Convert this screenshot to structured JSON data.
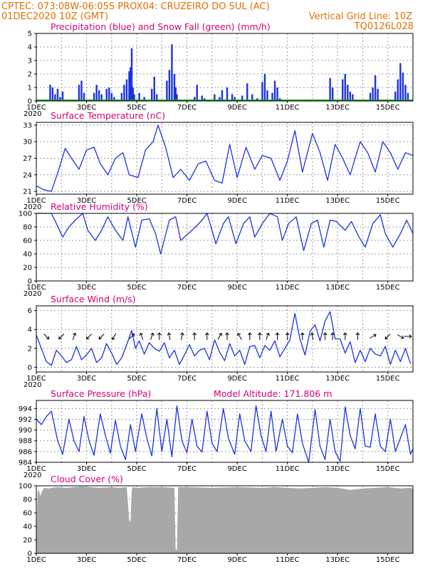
{
  "header": {
    "line1_left": "CPTEC:   073:08W-06:05S   PROX04: CRUZEIRO DO SUL (AC)",
    "line2_left": "01DEC2020 10Z (GMT)",
    "line2_right": "Vertical Grid Line: 10Z",
    "line3_right": "TQ0126L028"
  },
  "colors": {
    "header": "#e07000",
    "title": "#d4007a",
    "line": "#1c32e0",
    "bar": "#1c32e0",
    "snow": "#00a000",
    "cloud": "#a8a8a8",
    "grid": "#9a9a9a"
  },
  "x_axis": {
    "start_day": 1,
    "end_day": 16,
    "labels": [
      "1DEC",
      "3DEC",
      "5DEC",
      "7DEC",
      "9DEC",
      "11DEC",
      "13DEC",
      "15DEC"
    ],
    "label_days": [
      1,
      3,
      5,
      7,
      9,
      11,
      13,
      15
    ],
    "year_stub": "2020"
  },
  "chart_data": [
    {
      "id": "precip",
      "type": "bar",
      "title": "Precipitation (blue) and Snow Fall (green) (mm/h)",
      "ylim": [
        0,
        5
      ],
      "yticks": [
        0,
        1,
        2,
        3,
        4,
        5
      ],
      "x": [
        1.55,
        1.65,
        1.75,
        1.85,
        1.95,
        2.05,
        2.7,
        2.8,
        2.9,
        3.3,
        3.4,
        3.5,
        3.6,
        3.8,
        3.9,
        4.0,
        4.1,
        4.4,
        4.5,
        4.6,
        4.7,
        4.75,
        4.8,
        4.85,
        4.9,
        5.1,
        5.3,
        5.6,
        5.7,
        5.8,
        6.2,
        6.3,
        6.4,
        6.5,
        6.55,
        6.6,
        7.3,
        7.4,
        7.6,
        7.7,
        8.1,
        8.3,
        8.4,
        8.6,
        8.8,
        8.9,
        9.2,
        9.4,
        9.6,
        9.8,
        10.0,
        10.1,
        10.2,
        10.4,
        10.5,
        10.6,
        10.7,
        12.7,
        12.8,
        13.2,
        13.3,
        13.4,
        13.5,
        13.6,
        14.3,
        14.4,
        14.5,
        14.6,
        15.3,
        15.4,
        15.5,
        15.6,
        15.7,
        15.8
      ],
      "values": [
        1.2,
        1.0,
        0.5,
        0.9,
        0.3,
        0.7,
        1.2,
        1.5,
        0.6,
        0.6,
        1.2,
        0.8,
        0.5,
        0.9,
        1.0,
        0.6,
        0.3,
        0.6,
        1.2,
        1.6,
        2.2,
        2.5,
        3.9,
        1.0,
        0.5,
        0.6,
        0.3,
        0.9,
        1.8,
        0.5,
        1.5,
        2.3,
        4.2,
        2.0,
        1.0,
        0.5,
        0.3,
        1.2,
        0.4,
        0.2,
        0.5,
        0.3,
        0.8,
        1.0,
        0.5,
        0.3,
        0.4,
        1.3,
        0.5,
        0.2,
        1.4,
        2.0,
        0.8,
        0.6,
        1.5,
        1.0,
        0.2,
        1.7,
        1.0,
        1.6,
        2.0,
        1.2,
        0.7,
        0.5,
        0.6,
        1.0,
        1.9,
        0.9,
        0.7,
        1.6,
        2.8,
        2.1,
        1.2,
        0.6
      ]
    },
    {
      "id": "temperature",
      "type": "line",
      "title": "Surface Temperature (nC)",
      "ylim": [
        20.5,
        33.5
      ],
      "yticks": [
        21,
        24,
        27,
        30,
        33
      ],
      "x": [
        1.0,
        1.3,
        1.6,
        1.9,
        2.15,
        2.4,
        2.7,
        3.0,
        3.3,
        3.55,
        3.85,
        4.15,
        4.45,
        4.7,
        5.05,
        5.35,
        5.65,
        5.85,
        6.15,
        6.45,
        6.75,
        7.1,
        7.45,
        7.75,
        8.1,
        8.4,
        8.7,
        9.0,
        9.35,
        9.7,
        10.0,
        10.35,
        10.7,
        11.0,
        11.3,
        11.6,
        12.0,
        12.3,
        12.6,
        12.9,
        13.2,
        13.5,
        13.9,
        14.2,
        14.5,
        14.8,
        15.1,
        15.4,
        15.7,
        16.0
      ],
      "values": [
        22,
        21.3,
        21,
        25,
        28.8,
        27,
        25,
        28.5,
        29,
        26,
        24,
        27,
        28,
        24,
        23.5,
        28.5,
        30,
        33,
        29,
        23.5,
        25,
        23,
        26,
        26.5,
        23,
        22.5,
        29.5,
        23.5,
        29,
        25,
        27.5,
        27,
        23,
        26.5,
        32,
        24.5,
        31.5,
        28,
        23,
        29.5,
        27,
        24,
        30,
        28,
        24.5,
        30,
        28,
        25,
        28,
        27.5
      ]
    },
    {
      "id": "humidity",
      "type": "line",
      "title": "Relative Humidity (%)",
      "ylim": [
        0,
        100
      ],
      "yticks": [
        0,
        20,
        40,
        60,
        80,
        100
      ],
      "x": [
        1.0,
        1.2,
        1.4,
        1.6,
        1.8,
        2.05,
        2.3,
        2.55,
        2.85,
        3.05,
        3.35,
        3.6,
        3.85,
        4.15,
        4.45,
        4.65,
        4.95,
        5.2,
        5.5,
        5.75,
        5.95,
        6.3,
        6.55,
        6.75,
        7.05,
        7.35,
        7.6,
        7.8,
        8.15,
        8.45,
        8.65,
        8.95,
        9.25,
        9.5,
        9.7,
        10.0,
        10.3,
        10.6,
        10.8,
        11.05,
        11.35,
        11.65,
        11.95,
        12.2,
        12.45,
        12.7,
        12.95,
        13.3,
        13.55,
        13.85,
        14.1,
        14.4,
        14.7,
        14.9,
        15.2,
        15.5,
        15.75,
        16.0
      ],
      "values": [
        100,
        100,
        100,
        100,
        85,
        65,
        80,
        90,
        100,
        75,
        60,
        75,
        95,
        75,
        60,
        95,
        50,
        90,
        92,
        70,
        40,
        90,
        95,
        60,
        70,
        80,
        90,
        100,
        55,
        85,
        95,
        55,
        85,
        95,
        65,
        85,
        100,
        95,
        60,
        85,
        95,
        45,
        85,
        90,
        50,
        90,
        88,
        75,
        88,
        65,
        50,
        85,
        98,
        70,
        50,
        70,
        90,
        70
      ]
    },
    {
      "id": "wind",
      "type": "line",
      "title": "Surface Wind (m/s)",
      "ylim": [
        -0.5,
        6.5
      ],
      "yticks": [
        0,
        2,
        4,
        6
      ],
      "x": [
        1.0,
        1.2,
        1.4,
        1.6,
        1.8,
        2.0,
        2.2,
        2.4,
        2.6,
        2.8,
        3.0,
        3.2,
        3.4,
        3.6,
        3.8,
        4.0,
        4.2,
        4.4,
        4.6,
        4.8,
        4.95,
        5.1,
        5.3,
        5.5,
        5.7,
        5.9,
        6.1,
        6.3,
        6.5,
        6.7,
        6.9,
        7.1,
        7.3,
        7.5,
        7.7,
        7.9,
        8.1,
        8.3,
        8.5,
        8.7,
        8.9,
        9.1,
        9.3,
        9.5,
        9.7,
        9.9,
        10.1,
        10.3,
        10.5,
        10.7,
        10.9,
        11.1,
        11.3,
        11.5,
        11.7,
        11.9,
        12.1,
        12.3,
        12.5,
        12.7,
        12.9,
        13.1,
        13.3,
        13.5,
        13.7,
        13.9,
        14.1,
        14.3,
        14.5,
        14.7,
        14.9,
        15.1,
        15.3,
        15.5,
        15.7,
        15.9
      ],
      "values": [
        3.4,
        2.0,
        0.6,
        0.2,
        1.8,
        1.2,
        0.5,
        0.8,
        2.2,
        0.8,
        1.3,
        2.0,
        0.5,
        1.0,
        2.5,
        1.5,
        0.3,
        1.0,
        2.4,
        3.9,
        2.0,
        2.8,
        1.4,
        2.6,
        2.0,
        1.7,
        2.6,
        1.0,
        1.8,
        0.3,
        1.3,
        2.4,
        1.2,
        1.8,
        2.0,
        0.8,
        2.9,
        1.6,
        0.7,
        2.5,
        1.2,
        1.8,
        0.3,
        2.2,
        2.3,
        1.0,
        2.3,
        1.8,
        2.8,
        1.1,
        2.0,
        2.9,
        5.7,
        3.0,
        1.3,
        3.8,
        4.5,
        2.8,
        4.9,
        5.9,
        3.0,
        3.0,
        1.5,
        2.7,
        0.5,
        1.8,
        0.6,
        2.0,
        1.4,
        1.2,
        2.2,
        0.3,
        1.8,
        0.6,
        2.0,
        0.4
      ],
      "arrow_x": [
        1.4,
        2.0,
        2.5,
        3.1,
        3.6,
        4.1,
        4.8,
        5.2,
        5.6,
        5.9,
        6.3,
        6.8,
        7.3,
        7.8,
        8.3,
        8.6,
        9.1,
        9.5,
        9.9,
        10.2,
        10.6,
        11.0,
        11.6,
        12.0,
        12.5,
        12.8,
        13.3,
        13.8,
        14.4,
        15.0,
        15.5,
        15.8
      ],
      "arrow_dir_deg": [
        315,
        45,
        200,
        45,
        45,
        30,
        225,
        160,
        200,
        180,
        170,
        190,
        180,
        180,
        210,
        180,
        150,
        180,
        180,
        200,
        180,
        180,
        180,
        170,
        180,
        180,
        180,
        180,
        240,
        45,
        300,
        270
      ]
    },
    {
      "id": "pressure",
      "type": "line",
      "title": "Surface Pressure (hPa)",
      "subtitle": "Model Altitude: 171.806 m",
      "ylim": [
        984,
        995.5
      ],
      "yticks": [
        984,
        986,
        988,
        990,
        992,
        994
      ],
      "x": [
        1.0,
        1.2,
        1.4,
        1.6,
        1.85,
        2.05,
        2.3,
        2.5,
        2.7,
        2.9,
        3.1,
        3.3,
        3.55,
        3.75,
        3.95,
        4.15,
        4.35,
        4.55,
        4.75,
        4.95,
        5.2,
        5.4,
        5.6,
        5.8,
        6.0,
        6.2,
        6.4,
        6.6,
        6.8,
        7.0,
        7.2,
        7.4,
        7.6,
        7.8,
        8.0,
        8.2,
        8.45,
        8.65,
        8.9,
        9.1,
        9.3,
        9.55,
        9.75,
        9.95,
        10.15,
        10.35,
        10.55,
        10.8,
        11.0,
        11.2,
        11.4,
        11.6,
        11.85,
        12.1,
        12.3,
        12.5,
        12.7,
        12.9,
        13.1,
        13.3,
        13.5,
        13.7,
        13.9,
        14.1,
        14.3,
        14.5,
        14.7,
        14.9,
        15.1,
        15.3,
        15.5,
        15.7,
        15.9,
        16.0
      ],
      "values": [
        992,
        991,
        992.5,
        993.5,
        988,
        985.5,
        992,
        988,
        986,
        992.5,
        988,
        985.3,
        993,
        989,
        985.7,
        991.8,
        987,
        984.5,
        991,
        986,
        993,
        988.5,
        985.2,
        994,
        986,
        992,
        985,
        994.5,
        988,
        985.8,
        992,
        987,
        985.9,
        993.5,
        987.5,
        986,
        994,
        988.5,
        985.5,
        993,
        988,
        986,
        994.5,
        989,
        986,
        993.5,
        986,
        992,
        987,
        985.8,
        993,
        987.5,
        984,
        993.8,
        987,
        984.5,
        992,
        986,
        984.2,
        994.3,
        989,
        986.5,
        994,
        987,
        986.8,
        993,
        987,
        986,
        992,
        986,
        988.5,
        991,
        985.5,
        986.5
      ],
      "y_min_drop": 984
    },
    {
      "id": "cloud",
      "type": "area",
      "title": "Cloud Cover (%)",
      "ylim": [
        0,
        100
      ],
      "yticks": [
        0,
        20,
        40,
        60,
        80,
        100
      ],
      "x": [
        1.0,
        1.05,
        1.1,
        1.15,
        1.3,
        1.5,
        1.8,
        2.2,
        2.8,
        3.5,
        4.0,
        4.3,
        4.6,
        4.7,
        4.75,
        4.8,
        4.85,
        5.0,
        5.5,
        6.0,
        6.5,
        6.55,
        6.6,
        6.65,
        7.0,
        8.0,
        9.0,
        10.0,
        10.5,
        11.0,
        11.5,
        12.0,
        12.5,
        13.0,
        13.5,
        14.0,
        14.5,
        15.0,
        15.5,
        15.9,
        16.0
      ],
      "values": [
        20,
        90,
        95,
        85,
        97,
        96,
        98,
        97,
        99,
        97,
        98,
        97,
        98,
        50,
        45,
        95,
        98,
        97,
        98,
        98,
        97,
        5,
        5,
        98,
        98,
        97,
        98,
        97,
        98,
        97,
        96,
        97,
        98,
        97,
        94,
        96,
        97,
        98,
        96,
        97,
        95
      ]
    }
  ]
}
